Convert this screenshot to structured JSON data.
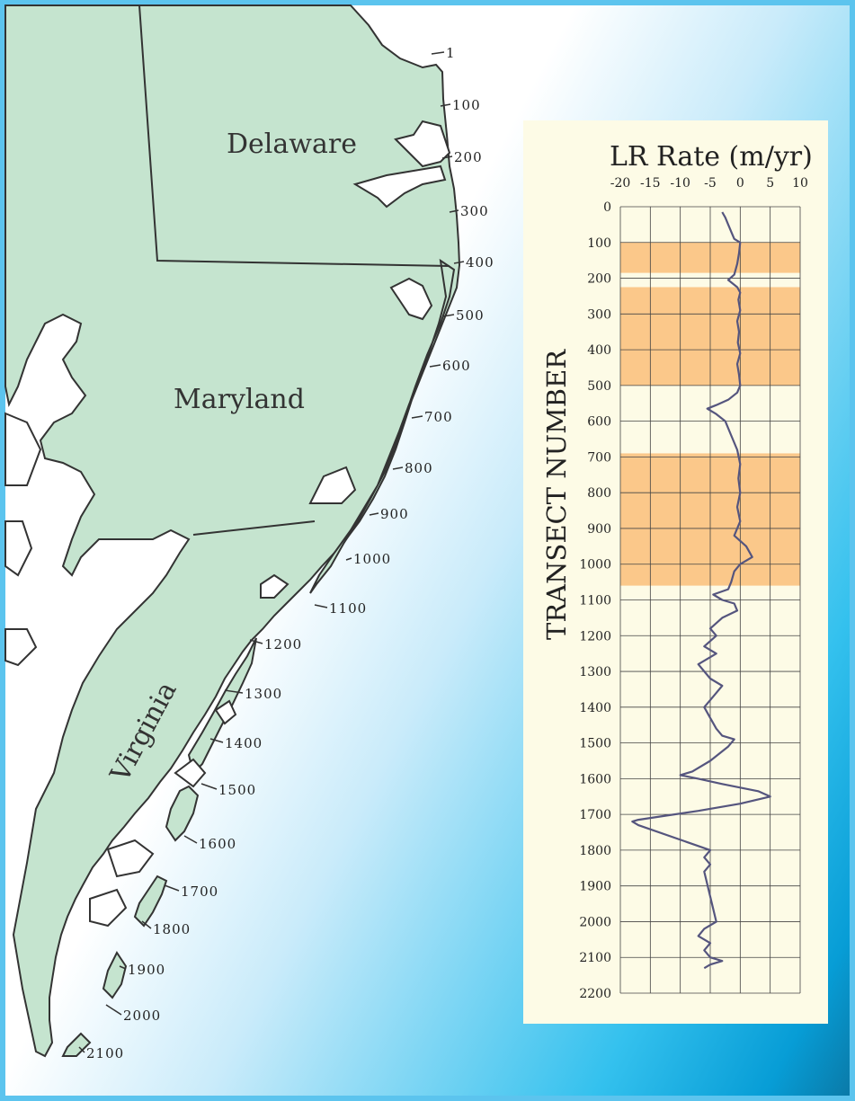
{
  "map": {
    "states": [
      {
        "name": "Delaware"
      },
      {
        "name": "Maryland"
      },
      {
        "name": "Virginia"
      }
    ],
    "transect_ticks": [
      "1",
      "100",
      "200",
      "300",
      "400",
      "500",
      "600",
      "700",
      "800",
      "900",
      "1000",
      "1100",
      "1200",
      "1300",
      "1400",
      "1500",
      "1600",
      "1700",
      "1800",
      "1900",
      "2000",
      "2100"
    ],
    "colors": {
      "land": "#c5e4cf",
      "coast_line": "#333333",
      "ocean_light": "#ffffff",
      "ocean_dark": "#0a7aa8"
    }
  },
  "chart_data": {
    "type": "line",
    "title": "LR Rate (m/yr)",
    "xlabel": "LR Rate (m/yr)",
    "ylabel": "TRANSECT NUMBER",
    "xlim": [
      -20,
      10
    ],
    "ylim": [
      0,
      2200
    ],
    "y_inverted": true,
    "x_ticks": [
      "-20",
      "-15",
      "-10",
      "-5",
      "0",
      "5",
      "10"
    ],
    "x_tick_values": [
      -20,
      -15,
      -10,
      -5,
      0,
      5,
      10
    ],
    "y_ticks": [
      "0",
      "100",
      "200",
      "300",
      "400",
      "500",
      "600",
      "700",
      "800",
      "900",
      "1000",
      "1100",
      "1200",
      "1300",
      "1400",
      "1500",
      "1600",
      "1700",
      "1800",
      "1900",
      "2000",
      "2100",
      "2200"
    ],
    "y_tick_values": [
      0,
      100,
      200,
      300,
      400,
      500,
      600,
      700,
      800,
      900,
      1000,
      1100,
      1200,
      1300,
      1400,
      1500,
      1600,
      1700,
      1800,
      1900,
      2000,
      2100,
      2200
    ],
    "grid": true,
    "highlight_bands": [
      {
        "from": 100,
        "to": 185,
        "color": "#fbc88a"
      },
      {
        "from": 225,
        "to": 500,
        "color": "#fbc88a"
      },
      {
        "from": 690,
        "to": 1060,
        "color": "#fbc88a"
      }
    ],
    "series": [
      {
        "color": "#55557e",
        "points": [
          [
            -3,
            15
          ],
          [
            -2.5,
            30
          ],
          [
            -2,
            50
          ],
          [
            -1.5,
            70
          ],
          [
            -1,
            90
          ],
          [
            0,
            100
          ],
          [
            -0.2,
            130
          ],
          [
            -0.5,
            160
          ],
          [
            -1,
            190
          ],
          [
            -2,
            205
          ],
          [
            -0.5,
            225
          ],
          [
            0,
            240
          ],
          [
            -0.3,
            260
          ],
          [
            0,
            290
          ],
          [
            -0.5,
            320
          ],
          [
            -0.2,
            350
          ],
          [
            -0.4,
            380
          ],
          [
            0,
            410
          ],
          [
            -0.5,
            440
          ],
          [
            -0.2,
            470
          ],
          [
            0,
            500
          ],
          [
            -0.5,
            520
          ],
          [
            -2,
            540
          ],
          [
            -4,
            555
          ],
          [
            -5.5,
            565
          ],
          [
            -4,
            580
          ],
          [
            -2.5,
            600
          ],
          [
            -1.5,
            640
          ],
          [
            -0.5,
            680
          ],
          [
            0,
            720
          ],
          [
            -0.3,
            760
          ],
          [
            0,
            800
          ],
          [
            -0.5,
            840
          ],
          [
            0,
            880
          ],
          [
            -1,
            920
          ],
          [
            1,
            950
          ],
          [
            2,
            980
          ],
          [
            0,
            1000
          ],
          [
            -1,
            1020
          ],
          [
            -1.5,
            1050
          ],
          [
            -2,
            1070
          ],
          [
            -4.5,
            1085
          ],
          [
            -3,
            1100
          ],
          [
            -1,
            1110
          ],
          [
            -0.5,
            1130
          ],
          [
            -3,
            1150
          ],
          [
            -5,
            1180
          ],
          [
            -4,
            1200
          ],
          [
            -6,
            1230
          ],
          [
            -4,
            1250
          ],
          [
            -7,
            1280
          ],
          [
            -6,
            1300
          ],
          [
            -5,
            1320
          ],
          [
            -3,
            1340
          ],
          [
            -4,
            1360
          ],
          [
            -5,
            1380
          ],
          [
            -6,
            1400
          ],
          [
            -5,
            1430
          ],
          [
            -4,
            1460
          ],
          [
            -3,
            1480
          ],
          [
            -1,
            1490
          ],
          [
            -2,
            1510
          ],
          [
            -5,
            1550
          ],
          [
            -8,
            1580
          ],
          [
            -10,
            1590
          ],
          [
            -7,
            1600
          ],
          [
            -3,
            1615
          ],
          [
            0,
            1625
          ],
          [
            3,
            1635
          ],
          [
            5,
            1650
          ],
          [
            0,
            1670
          ],
          [
            -7,
            1690
          ],
          [
            -13,
            1705
          ],
          [
            -17,
            1715
          ],
          [
            -18,
            1720
          ],
          [
            -17,
            1730
          ],
          [
            -5,
            1800
          ],
          [
            -6,
            1820
          ],
          [
            -5,
            1840
          ],
          [
            -6,
            1860
          ],
          [
            -4,
            2000
          ],
          [
            -6,
            2020
          ],
          [
            -7,
            2040
          ],
          [
            -5,
            2060
          ],
          [
            -6,
            2080
          ],
          [
            -5,
            2100
          ],
          [
            -3,
            2110
          ],
          [
            -5,
            2120
          ],
          [
            -6,
            2130
          ]
        ]
      }
    ]
  }
}
